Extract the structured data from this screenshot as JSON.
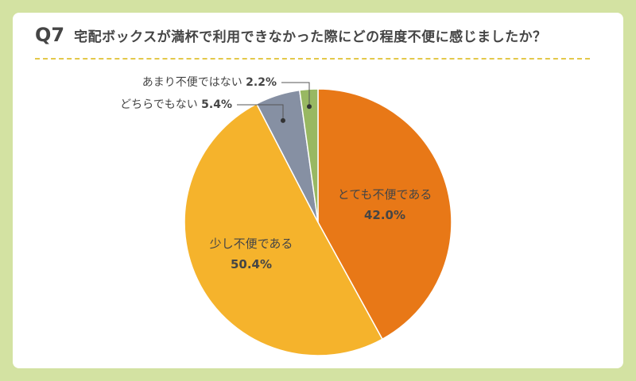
{
  "question": {
    "number": "Q7",
    "text": "宅配ボックスが満杯で利用できなかった際にどの程度不便に感じましたか？"
  },
  "colors": {
    "background": "#d3e2a2",
    "card": "#ffffff",
    "rule": "#e3c84a",
    "text": "#454545"
  },
  "chart_data": {
    "type": "pie",
    "start": "12 o'clock, clockwise",
    "slices": [
      {
        "label": "とても不便である",
        "value": 42.0,
        "display": "42.0%",
        "color": "#e87817",
        "label_position": "inside"
      },
      {
        "label": "少し不便である",
        "value": 50.4,
        "display": "50.4%",
        "color": "#f5b32c",
        "label_position": "inside"
      },
      {
        "label": "どちらでもない",
        "value": 5.4,
        "display": "5.4%",
        "color": "#8690a3",
        "label_position": "outside-left"
      },
      {
        "label": "あまり不便ではない",
        "value": 2.2,
        "display": "2.2%",
        "color": "#98b862",
        "label_position": "outside-left"
      }
    ]
  }
}
